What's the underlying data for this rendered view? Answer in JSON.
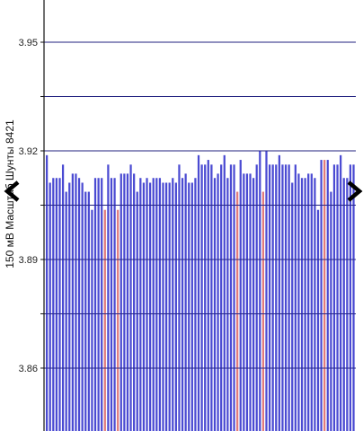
{
  "colors": {
    "bar": "#4a4ad2",
    "highlight": "#e07b7b",
    "grid": "#222222",
    "axis": "#111111",
    "background": "#ffffff"
  },
  "nav": {
    "prev_icon": "chevron-left-icon",
    "next_icon": "chevron-right-icon"
  },
  "chart_data": {
    "type": "bar",
    "ylabel": "150 мВ Масштаб Шунты 8421",
    "ylim": [
      3.85,
      3.967
    ],
    "yticks": [
      3.86,
      3.89,
      3.92,
      3.95
    ],
    "ytick_labels": [
      "3.86",
      "3.89",
      "3.92",
      "3.95"
    ],
    "grid": true,
    "values": [
      3.9188,
      3.9112,
      3.9125,
      3.9125,
      3.9125,
      3.9162,
      3.9087,
      3.9112,
      3.9137,
      3.9137,
      3.9125,
      3.9112,
      3.9087,
      3.9087,
      3.9037,
      3.9125,
      3.9125,
      3.9125,
      3.9037,
      3.9162,
      3.9125,
      3.9125,
      3.9037,
      3.9137,
      3.9137,
      3.9137,
      3.9162,
      3.9137,
      3.9087,
      3.9125,
      3.9112,
      3.9125,
      3.9112,
      3.9125,
      3.9125,
      3.9125,
      3.9112,
      3.9112,
      3.9112,
      3.9125,
      3.9112,
      3.9162,
      3.9125,
      3.9137,
      3.9112,
      3.9112,
      3.9125,
      3.9188,
      3.9162,
      3.9162,
      3.9175,
      3.9162,
      3.9125,
      3.9137,
      3.9162,
      3.9188,
      3.9125,
      3.9162,
      3.9162,
      3.9087,
      3.9175,
      3.9137,
      3.9137,
      3.9137,
      3.9125,
      3.9162,
      3.92,
      3.9087,
      3.92,
      3.9162,
      3.9162,
      3.9162,
      3.9188,
      3.9162,
      3.9162,
      3.9162,
      3.9112,
      3.9162,
      3.9137,
      3.9125,
      3.9125,
      3.9137,
      3.9137,
      3.9125,
      3.9037,
      3.9175,
      3.9175,
      3.9175,
      3.9087,
      3.9162,
      3.9162,
      3.9188,
      3.9125,
      3.9125,
      3.9162,
      3.9162
    ],
    "highlighted_indices": [
      18,
      22,
      59,
      67,
      86
    ]
  }
}
